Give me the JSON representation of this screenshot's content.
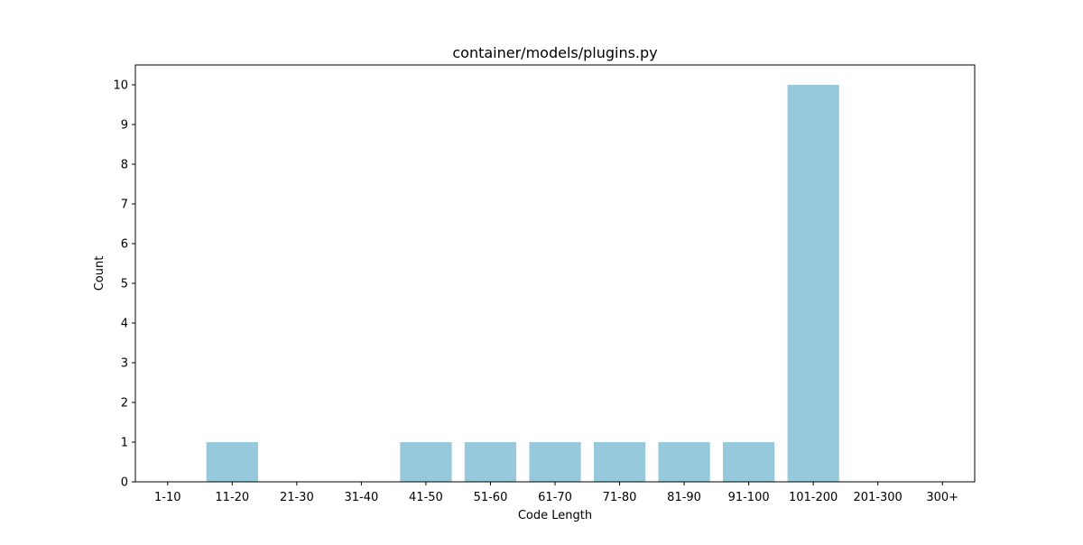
{
  "chart_data": {
    "type": "bar",
    "title": "container/models/plugins.py",
    "xlabel": "Code Length",
    "ylabel": "Count",
    "categories": [
      "1-10",
      "11-20",
      "21-30",
      "31-40",
      "41-50",
      "51-60",
      "61-70",
      "71-80",
      "81-90",
      "91-100",
      "101-200",
      "201-300",
      "300+"
    ],
    "values": [
      0,
      1,
      0,
      0,
      1,
      1,
      1,
      1,
      1,
      1,
      10,
      0,
      0
    ],
    "ylim": [
      0,
      10.5
    ],
    "yticks": [
      0,
      1,
      2,
      3,
      4,
      5,
      6,
      7,
      8,
      9,
      10
    ],
    "grid": false,
    "legend": "none",
    "bar_color": "#96c9dc"
  }
}
